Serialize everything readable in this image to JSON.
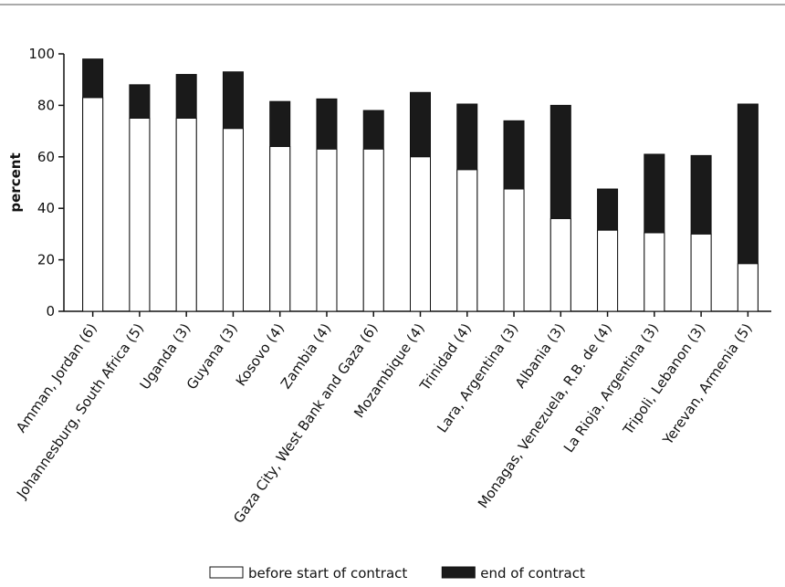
{
  "chart_data": {
    "type": "bar",
    "overlap": true,
    "y_label": "percent",
    "categories": [
      "Amman, Jordan (6)",
      "Johannesburg, South Africa (5)",
      "Uganda (3)",
      "Guyana (3)",
      "Kosovo (4)",
      "Zambia (4)",
      "Gaza City, West Bank and Gaza (6)",
      "Mozambique (4)",
      "Trinidad (4)",
      "Lara, Argentina (3)",
      "Albania (3)",
      "Monagas, Venezuela, R.B. de (4)",
      "La Rioja, Argentina (3)",
      "Tripoli, Lebanon (3)",
      "Yerevan, Armenia (5)"
    ],
    "series": [
      {
        "name": "end of contract",
        "color": "#1a1a1a",
        "values": [
          98,
          88,
          92,
          93,
          81.5,
          82.5,
          78,
          85,
          80.5,
          74,
          80,
          47.5,
          61,
          60.5,
          80.5
        ]
      },
      {
        "name": "before start of contract",
        "color": "#ffffff",
        "values": [
          83,
          75,
          75,
          71,
          64,
          63,
          63,
          60,
          55,
          47.5,
          36,
          31.5,
          30.5,
          30,
          18.5
        ]
      }
    ],
    "ylim": [
      0,
      100
    ],
    "yticks": [
      0,
      20,
      40,
      60,
      80,
      100
    ],
    "grid": false
  }
}
